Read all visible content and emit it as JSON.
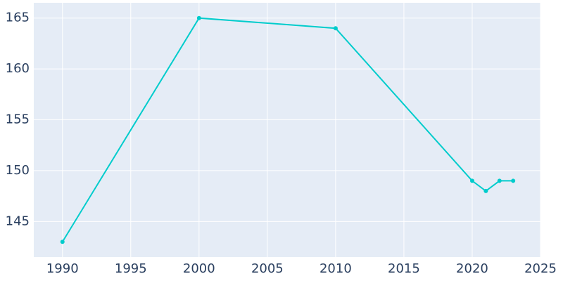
{
  "chart_data": {
    "type": "line",
    "x": [
      1990,
      2000,
      2010,
      2020,
      2021,
      2022,
      2023
    ],
    "series": [
      {
        "color": "#00cccc",
        "values": [
          143,
          165,
          164,
          149,
          148,
          149,
          149
        ]
      }
    ],
    "xlim": [
      1987.9,
      2025
    ],
    "xticks": [
      1990,
      1995,
      2000,
      2005,
      2010,
      2015,
      2020,
      2025
    ],
    "ylim": [
      141.5,
      166.5
    ],
    "yticks": [
      145,
      150,
      155,
      160,
      165
    ],
    "grid": true,
    "background": "#e5ecf6"
  }
}
